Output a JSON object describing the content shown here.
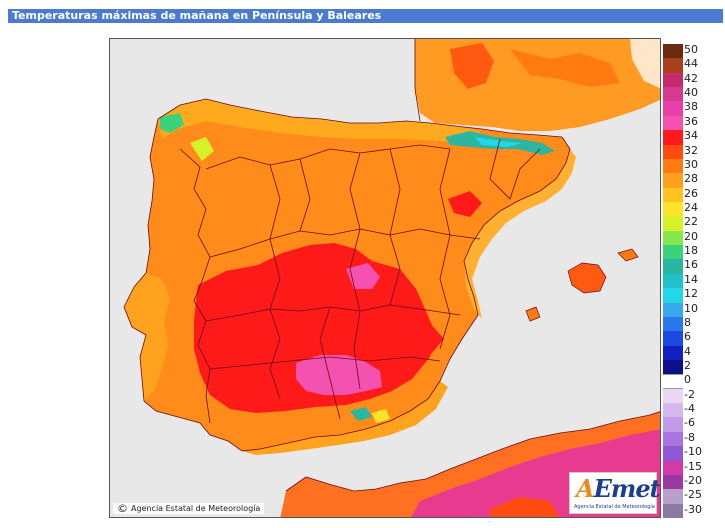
{
  "title": "Temperaturas máximas de mañana en Península y Baleares",
  "credit": "Agencia Estatal de Meteorología",
  "logo_word": "Emet",
  "logo_letter": "A",
  "logo_subtitle": "Agencia Estatal de Meteorología",
  "legend": {
    "entries": [
      {
        "label": "50",
        "color": "#6b2a0e"
      },
      {
        "label": "44",
        "color": "#a8401c"
      },
      {
        "label": "42",
        "color": "#c42a6c"
      },
      {
        "label": "40",
        "color": "#d63a8e"
      },
      {
        "label": "38",
        "color": "#ea3ea8"
      },
      {
        "label": "36",
        "color": "#f452b0"
      },
      {
        "label": "34",
        "color": "#ff1a1a"
      },
      {
        "label": "32",
        "color": "#ff4a10"
      },
      {
        "label": "30",
        "color": "#ff7a10"
      },
      {
        "label": "28",
        "color": "#ffa11a"
      },
      {
        "label": "26",
        "color": "#ffc21e"
      },
      {
        "label": "24",
        "color": "#ffe22a"
      },
      {
        "label": "22",
        "color": "#d6f02a"
      },
      {
        "label": "20",
        "color": "#86e84a"
      },
      {
        "label": "18",
        "color": "#3ad27a"
      },
      {
        "label": "16",
        "color": "#2ab6a0"
      },
      {
        "label": "14",
        "color": "#22c0c8"
      },
      {
        "label": "12",
        "color": "#22d8e8"
      },
      {
        "label": "10",
        "color": "#3aa8f0"
      },
      {
        "label": "8",
        "color": "#2a78ee"
      },
      {
        "label": "6",
        "color": "#1a4ae0"
      },
      {
        "label": "4",
        "color": "#1020c0"
      },
      {
        "label": "2",
        "color": "#0a108a"
      },
      {
        "label": "0",
        "color": "#ffffff"
      },
      {
        "label": "-2",
        "color": "#e8d8f4"
      },
      {
        "label": "-4",
        "color": "#d4b8ee"
      },
      {
        "label": "-6",
        "color": "#c29ae8"
      },
      {
        "label": "-8",
        "color": "#a874e0"
      },
      {
        "label": "-10",
        "color": "#9058d6"
      },
      {
        "label": "-15",
        "color": "#d23aa8"
      },
      {
        "label": "-20",
        "color": "#9a3aa0"
      },
      {
        "label": "-25",
        "color": "#b8a0c8"
      },
      {
        "label": "-30",
        "color": "#8a7aa0"
      }
    ]
  },
  "colors": {
    "title_bar": "#4a7bd0",
    "sea": "#e8e8e8",
    "land_base": "#ff8c1a",
    "france": "#ff9a22",
    "hot": "#ff1a1a",
    "very_hot": "#f452b0",
    "coast": "#ffb030",
    "mountain": "#2ab6a0",
    "africa_base": "#ff7020",
    "africa_hot": "#e83a8e",
    "border": "#6b0a1a"
  }
}
